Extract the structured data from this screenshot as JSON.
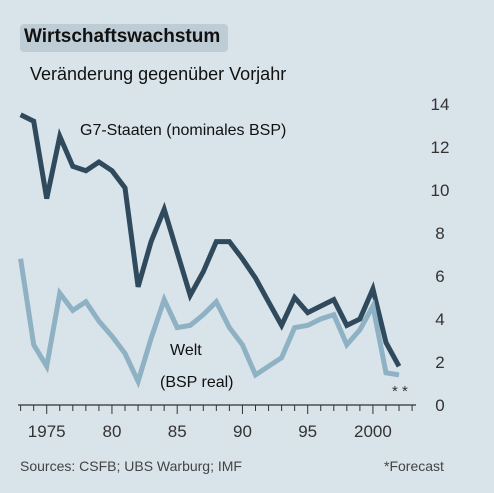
{
  "header": {
    "title": "Wirtschaftswachstum",
    "subtitle": "Veränderung gegenüber Vorjahr"
  },
  "footer": {
    "source": "Sources: CSFB; UBS Warburg; IMF",
    "note": "*Forecast",
    "forecast_marks": "* *"
  },
  "colors": {
    "background": "#d9e3ea",
    "g7_line": "#2f4a5c",
    "world_line": "#8fb1c4",
    "axis": "#333333"
  },
  "chart_data": {
    "type": "line",
    "x": [
      1973,
      1974,
      1975,
      1976,
      1977,
      1978,
      1979,
      1980,
      1981,
      1982,
      1983,
      1984,
      1985,
      1986,
      1987,
      1988,
      1989,
      1990,
      1991,
      1992,
      1993,
      1994,
      1995,
      1996,
      1997,
      1998,
      1999,
      2000,
      2001,
      2002
    ],
    "xticks": [
      1975,
      1980,
      1985,
      1990,
      1995,
      2000
    ],
    "xtick_labels": [
      "1975",
      "80",
      "85",
      "90",
      "95",
      "2000"
    ],
    "yticks": [
      0,
      2,
      4,
      6,
      8,
      10,
      12,
      14
    ],
    "ylim": [
      0,
      14
    ],
    "xlim": [
      1972.8,
      2003.3
    ],
    "series": [
      {
        "name": "G7-Staaten (nominales BSP)",
        "values": [
          13.5,
          13.2,
          9.6,
          12.5,
          11.1,
          10.9,
          11.3,
          10.9,
          10.1,
          5.5,
          7.6,
          9.1,
          7.1,
          5.1,
          6.2,
          7.6,
          7.6,
          6.8,
          5.9,
          4.8,
          3.7,
          5.0,
          4.3,
          4.6,
          4.9,
          3.7,
          4.0,
          5.4,
          2.9,
          1.8
        ]
      },
      {
        "name": "Welt (BSP real)",
        "values": [
          6.8,
          2.8,
          1.8,
          5.2,
          4.4,
          4.8,
          3.9,
          3.2,
          2.4,
          1.1,
          3.1,
          4.9,
          3.6,
          3.7,
          4.2,
          4.8,
          3.6,
          2.8,
          1.4,
          1.8,
          2.2,
          3.6,
          3.7,
          4.0,
          4.2,
          2.8,
          3.5,
          4.6,
          1.5,
          1.4
        ]
      }
    ],
    "labels": {
      "g7_line1": "G7-Staaten (nominales BSP)",
      "world_line1": "Welt",
      "world_line2": "(BSP real)"
    },
    "grid": false
  }
}
